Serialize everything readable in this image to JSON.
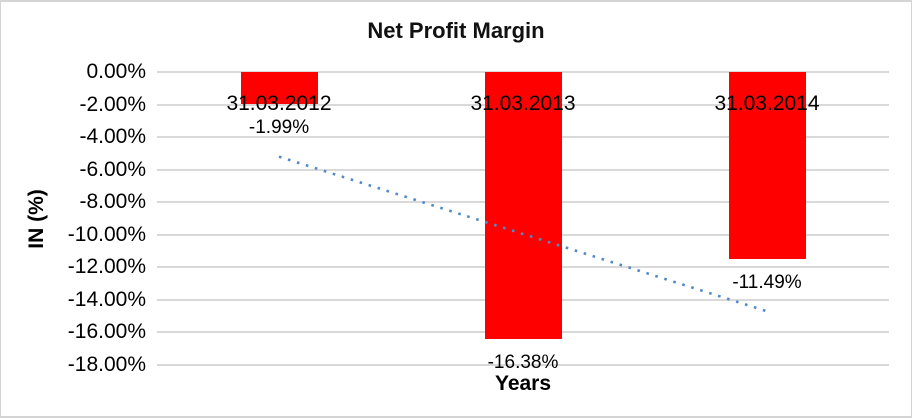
{
  "chart_data": {
    "type": "bar",
    "title": "Net Profit Margin",
    "xlabel": "Years",
    "ylabel": "IN (%)",
    "categories": [
      "31.03.2012",
      "31.03.2013",
      "31.03.2014"
    ],
    "values": [
      -1.99,
      -16.38,
      -11.49
    ],
    "data_labels": [
      "-1.99%",
      "-16.38%",
      "-11.49%"
    ],
    "ylim": [
      -18,
      0
    ],
    "ytick_step": -2,
    "ytick_labels": [
      "0.00%",
      "-2.00%",
      "-4.00%",
      "-6.00%",
      "-8.00%",
      "-10.00%",
      "-12.00%",
      "-14.00%",
      "-16.00%",
      "-18.00%"
    ],
    "grid": true,
    "legend": false,
    "bar_color": "#ff0000",
    "gridline_color": "#d9d9d9",
    "text_color": "#000000",
    "trendline": {
      "type": "linear",
      "style": "dotted",
      "color": "#528ac7",
      "start_value": -5.2,
      "end_value": -14.7
    }
  }
}
